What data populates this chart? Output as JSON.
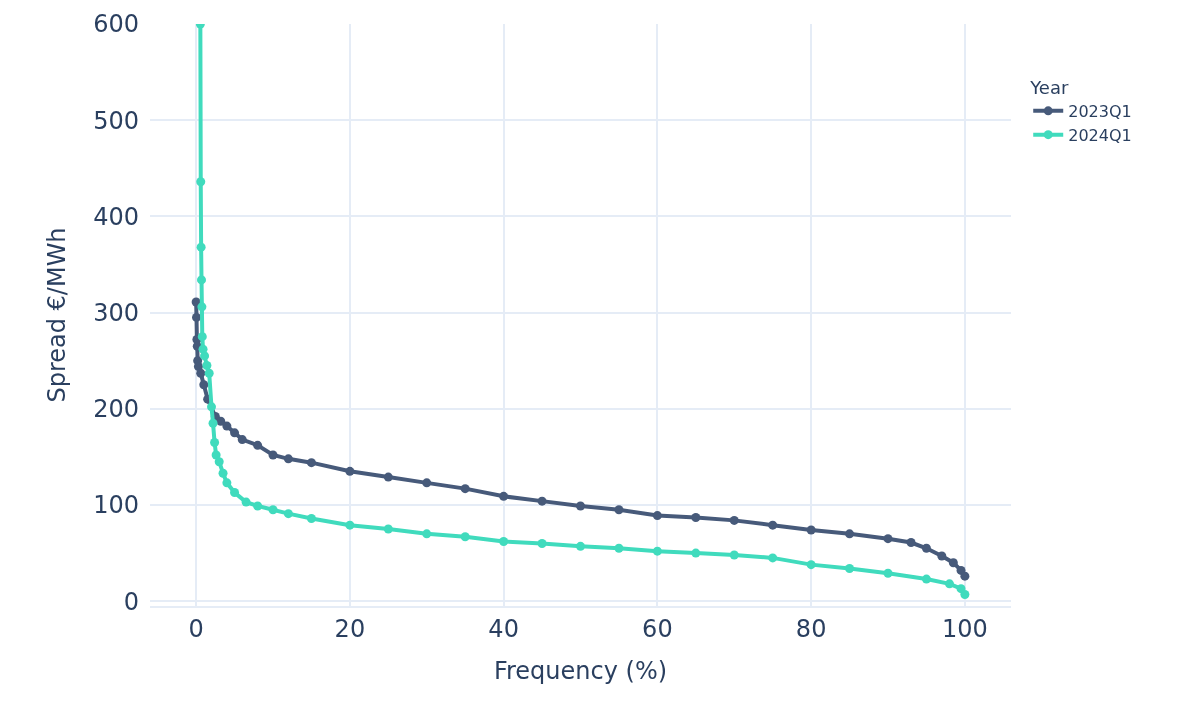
{
  "chart_data": {
    "type": "line",
    "xlabel": "Frequency (%)",
    "ylabel": "Spread €/MWh",
    "legend_title": "Year",
    "legend": "top right",
    "grid": true,
    "marker": "circle",
    "line_style": "solid",
    "xlim": [
      -6,
      106
    ],
    "xticks": [
      0,
      20,
      40,
      60,
      80,
      100
    ],
    "ylim": [
      -5,
      600
    ],
    "yticks": [
      0,
      100,
      200,
      300,
      400,
      500,
      600
    ],
    "series": [
      {
        "name": "2023Q1",
        "color": "#475a7a",
        "x": [
          0,
          0.05,
          0.1,
          0.15,
          0.2,
          0.3,
          0.6,
          1,
          1.5,
          2.5,
          3.2,
          4,
          5,
          6,
          8,
          10,
          12,
          15,
          20,
          25,
          30,
          35,
          40,
          45,
          50,
          55,
          60,
          65,
          70,
          75,
          80,
          85,
          90,
          93,
          95,
          97,
          98.5,
          99.5,
          100
        ],
        "values": [
          311,
          295,
          272,
          265,
          250,
          244,
          237,
          225,
          210,
          192,
          187,
          182,
          175,
          168,
          162,
          152,
          148,
          144,
          135,
          129,
          123,
          117,
          109,
          104,
          99,
          95,
          89,
          87,
          84,
          79,
          74,
          70,
          65,
          61,
          55,
          47,
          40,
          32,
          26
        ]
      },
      {
        "name": "2024Q1",
        "color": "#40dbbd",
        "x": [
          0.55,
          0.6,
          0.65,
          0.7,
          0.75,
          0.8,
          0.9,
          1.1,
          1.4,
          1.7,
          2,
          2.2,
          2.4,
          2.6,
          3,
          3.5,
          4,
          5,
          6.5,
          8,
          10,
          12,
          15,
          20,
          25,
          30,
          35,
          40,
          45,
          50,
          55,
          60,
          65,
          70,
          75,
          80,
          85,
          90,
          95,
          98,
          99.5,
          100
        ],
        "values": [
          600,
          436,
          368,
          334,
          306,
          275,
          262,
          255,
          245,
          237,
          202,
          185,
          165,
          152,
          145,
          133,
          123,
          113,
          103,
          99,
          95,
          91,
          86,
          79,
          75,
          70,
          67,
          62,
          60,
          57,
          55,
          52,
          50,
          48,
          45,
          38,
          34,
          29,
          23,
          18,
          13,
          7
        ]
      }
    ]
  }
}
